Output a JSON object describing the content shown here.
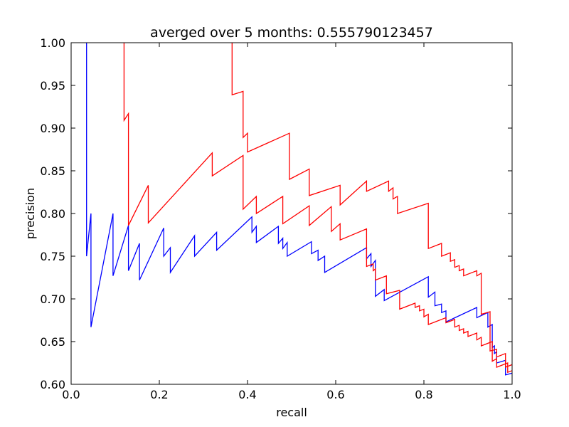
{
  "chart_data": {
    "type": "line",
    "title": "averged over 5 months: 0.555790123457",
    "xlabel": "recall",
    "ylabel": "precision",
    "xlim": [
      0.0,
      1.0
    ],
    "ylim": [
      0.6,
      1.0
    ],
    "xticks": [
      0.0,
      0.2,
      0.4,
      0.6,
      0.8,
      1.0
    ],
    "xtick_labels": [
      "0.0",
      "0.2",
      "0.4",
      "0.6",
      "0.8",
      "1.0"
    ],
    "yticks": [
      0.6,
      0.65,
      0.7,
      0.75,
      0.8,
      0.85,
      0.9,
      0.95,
      1.0
    ],
    "ytick_labels": [
      "0.60",
      "0.65",
      "0.70",
      "0.75",
      "0.80",
      "0.85",
      "0.90",
      "0.95",
      "1.00"
    ],
    "grid": false,
    "series": [
      {
        "color": "#0000ff",
        "points": [
          [
            0.035,
            1.0
          ],
          [
            0.035,
            0.75
          ],
          [
            0.045,
            0.8
          ],
          [
            0.045,
            0.667
          ],
          [
            0.095,
            0.8
          ],
          [
            0.095,
            0.727
          ],
          [
            0.13,
            0.786
          ],
          [
            0.13,
            0.733
          ],
          [
            0.155,
            0.765
          ],
          [
            0.155,
            0.722
          ],
          [
            0.21,
            0.783
          ],
          [
            0.21,
            0.75
          ],
          [
            0.225,
            0.76
          ],
          [
            0.225,
            0.731
          ],
          [
            0.28,
            0.774
          ],
          [
            0.28,
            0.75
          ],
          [
            0.33,
            0.778
          ],
          [
            0.33,
            0.757
          ],
          [
            0.41,
            0.796
          ],
          [
            0.41,
            0.778
          ],
          [
            0.42,
            0.785
          ],
          [
            0.42,
            0.766
          ],
          [
            0.47,
            0.785
          ],
          [
            0.47,
            0.765
          ],
          [
            0.48,
            0.771
          ],
          [
            0.48,
            0.759
          ],
          [
            0.49,
            0.766
          ],
          [
            0.49,
            0.75
          ],
          [
            0.545,
            0.767
          ],
          [
            0.545,
            0.753
          ],
          [
            0.56,
            0.757
          ],
          [
            0.56,
            0.745
          ],
          [
            0.575,
            0.75
          ],
          [
            0.575,
            0.731
          ],
          [
            0.67,
            0.76
          ],
          [
            0.67,
            0.747
          ],
          [
            0.68,
            0.753
          ],
          [
            0.68,
            0.738
          ],
          [
            0.69,
            0.745
          ],
          [
            0.69,
            0.703
          ],
          [
            0.71,
            0.711
          ],
          [
            0.71,
            0.698
          ],
          [
            0.81,
            0.726
          ],
          [
            0.81,
            0.702
          ],
          [
            0.825,
            0.708
          ],
          [
            0.825,
            0.692
          ],
          [
            0.84,
            0.694
          ],
          [
            0.84,
            0.684
          ],
          [
            0.85,
            0.686
          ],
          [
            0.85,
            0.673
          ],
          [
            0.92,
            0.69
          ],
          [
            0.92,
            0.678
          ],
          [
            0.945,
            0.684
          ],
          [
            0.945,
            0.667
          ],
          [
            0.955,
            0.67
          ],
          [
            0.955,
            0.643
          ],
          [
            0.96,
            0.645
          ],
          [
            0.96,
            0.636
          ],
          [
            0.965,
            0.638
          ],
          [
            0.965,
            0.625
          ],
          [
            0.985,
            0.628
          ],
          [
            0.985,
            0.611
          ],
          [
            1.0,
            0.613
          ]
        ]
      },
      {
        "color": "#ff0000",
        "points": [
          [
            0.13,
            0.786
          ],
          [
            0.175,
            0.833
          ],
          [
            0.175,
            0.789
          ],
          [
            0.32,
            0.871
          ],
          [
            0.32,
            0.844
          ],
          [
            0.39,
            0.868
          ],
          [
            0.39,
            0.805
          ],
          [
            0.42,
            0.82
          ],
          [
            0.42,
            0.8
          ],
          [
            0.48,
            0.82
          ],
          [
            0.48,
            0.788
          ],
          [
            0.54,
            0.809
          ],
          [
            0.54,
            0.786
          ],
          [
            0.59,
            0.808
          ],
          [
            0.59,
            0.779
          ],
          [
            0.61,
            0.788
          ],
          [
            0.61,
            0.769
          ],
          [
            0.67,
            0.782
          ],
          [
            0.67,
            0.738
          ],
          [
            0.685,
            0.741
          ],
          [
            0.685,
            0.733
          ],
          [
            0.69,
            0.735
          ],
          [
            0.69,
            0.722
          ],
          [
            0.715,
            0.727
          ],
          [
            0.715,
            0.706
          ],
          [
            0.745,
            0.71
          ],
          [
            0.745,
            0.688
          ],
          [
            0.78,
            0.695
          ],
          [
            0.78,
            0.69
          ],
          [
            0.79,
            0.692
          ],
          [
            0.79,
            0.686
          ],
          [
            0.8,
            0.688
          ],
          [
            0.8,
            0.679
          ],
          [
            0.81,
            0.682
          ],
          [
            0.81,
            0.67
          ],
          [
            0.85,
            0.678
          ],
          [
            0.85,
            0.672
          ],
          [
            0.87,
            0.676
          ],
          [
            0.87,
            0.667
          ],
          [
            0.88,
            0.669
          ],
          [
            0.88,
            0.663
          ],
          [
            0.89,
            0.665
          ],
          [
            0.89,
            0.66
          ],
          [
            0.9,
            0.662
          ],
          [
            0.9,
            0.656
          ],
          [
            0.92,
            0.66
          ],
          [
            0.92,
            0.652
          ],
          [
            0.93,
            0.655
          ],
          [
            0.93,
            0.645
          ],
          [
            0.955,
            0.65
          ],
          [
            0.955,
            0.627
          ],
          [
            0.965,
            0.63
          ],
          [
            0.965,
            0.62
          ],
          [
            0.99,
            0.625
          ],
          [
            0.99,
            0.614
          ],
          [
            1.0,
            0.616
          ]
        ]
      },
      {
        "color": "#ff0000",
        "points": [
          [
            0.12,
            1.0
          ],
          [
            0.12,
            0.909
          ],
          [
            0.13,
            0.917
          ],
          [
            0.13,
            0.786
          ]
        ]
      },
      {
        "color": "#ff0000",
        "points": [
          [
            0.365,
            1.0
          ],
          [
            0.365,
            0.939
          ],
          [
            0.39,
            0.943
          ],
          [
            0.39,
            0.889
          ],
          [
            0.4,
            0.894
          ],
          [
            0.4,
            0.872
          ],
          [
            0.495,
            0.894
          ],
          [
            0.495,
            0.84
          ],
          [
            0.54,
            0.852
          ],
          [
            0.54,
            0.821
          ],
          [
            0.61,
            0.833
          ],
          [
            0.61,
            0.81
          ],
          [
            0.67,
            0.838
          ],
          [
            0.67,
            0.826
          ],
          [
            0.72,
            0.838
          ],
          [
            0.72,
            0.826
          ],
          [
            0.73,
            0.83
          ],
          [
            0.73,
            0.817
          ],
          [
            0.74,
            0.82
          ],
          [
            0.74,
            0.8
          ],
          [
            0.81,
            0.812
          ],
          [
            0.81,
            0.759
          ],
          [
            0.84,
            0.765
          ],
          [
            0.84,
            0.75
          ],
          [
            0.86,
            0.754
          ],
          [
            0.86,
            0.744
          ],
          [
            0.87,
            0.746
          ],
          [
            0.87,
            0.737
          ],
          [
            0.88,
            0.739
          ],
          [
            0.88,
            0.733
          ],
          [
            0.89,
            0.735
          ],
          [
            0.89,
            0.727
          ],
          [
            0.92,
            0.733
          ],
          [
            0.92,
            0.727
          ],
          [
            0.93,
            0.73
          ],
          [
            0.93,
            0.682
          ],
          [
            0.95,
            0.685
          ],
          [
            0.95,
            0.639
          ],
          [
            0.965,
            0.641
          ],
          [
            0.965,
            0.632
          ],
          [
            0.985,
            0.636
          ],
          [
            0.985,
            0.62
          ],
          [
            1.0,
            0.623
          ]
        ]
      }
    ]
  }
}
